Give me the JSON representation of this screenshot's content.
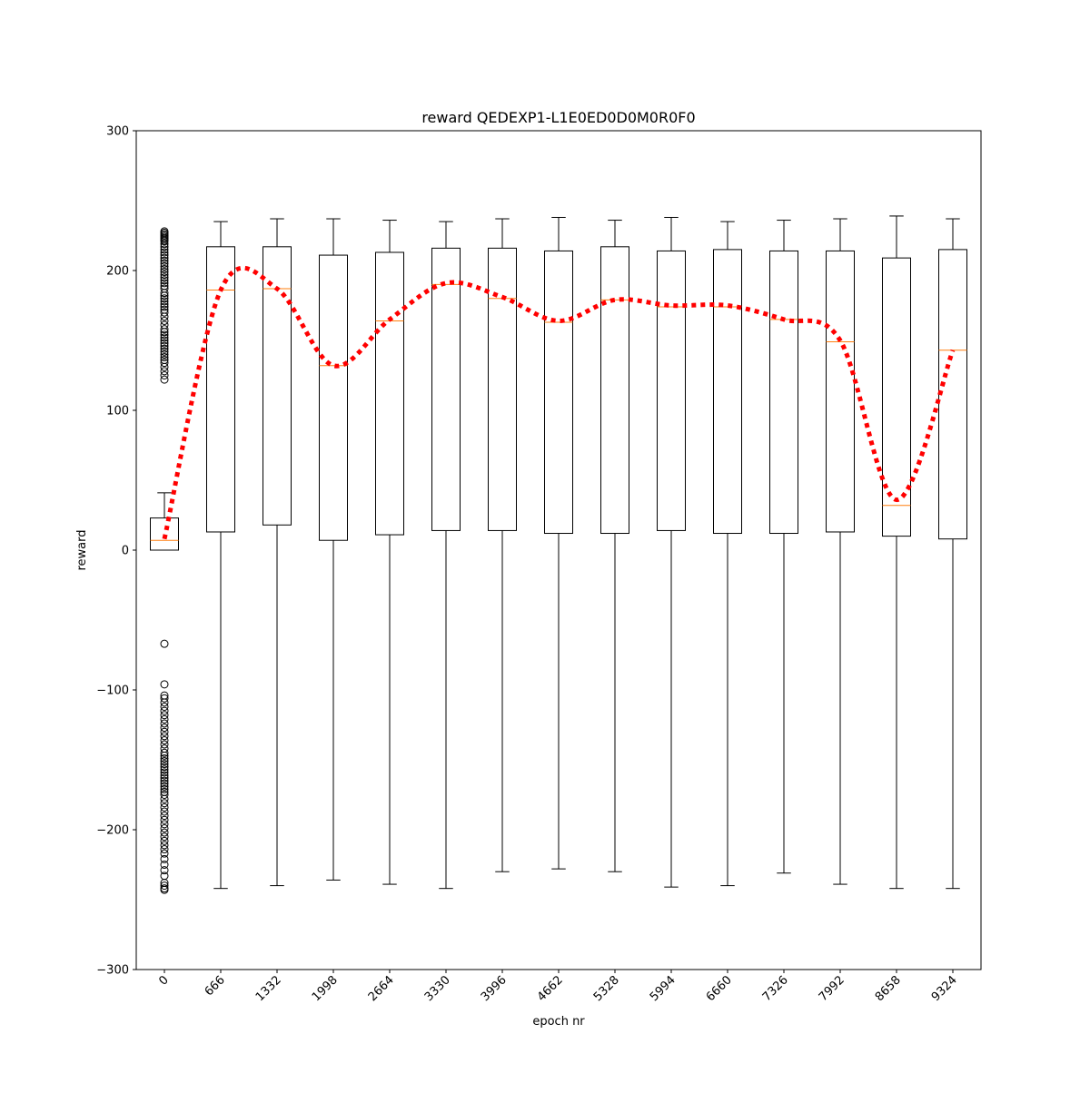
{
  "chart_data": {
    "type": "box",
    "title": "reward QEDEXP1-L1E0ED0D0M0R0F0",
    "xlabel": "epoch nr",
    "ylabel": "reward",
    "ylim": [
      -300,
      300
    ],
    "yticks": [
      -300,
      -200,
      -100,
      0,
      100,
      200,
      300
    ],
    "ytick_labels": [
      "−300",
      "−200",
      "−100",
      "0",
      "100",
      "200",
      "300"
    ],
    "categories": [
      "0",
      "666",
      "1332",
      "1998",
      "2664",
      "3330",
      "3996",
      "4662",
      "5328",
      "5994",
      "6660",
      "7326",
      "7992",
      "8658",
      "9324"
    ],
    "grid": false,
    "colors": {
      "box": "#000000",
      "median": "#ff7f0e",
      "trend": "#ff0000",
      "flier": "#000000"
    },
    "boxes": [
      {
        "category": "0",
        "whisker_low": 0,
        "q1": 0,
        "median": 7,
        "q3": 23,
        "whisker_high": 41,
        "fliers": [
          228,
          227,
          226,
          225,
          224,
          223,
          222,
          221,
          219,
          217,
          215,
          213,
          211,
          209,
          207,
          205,
          203,
          201,
          199,
          197,
          195,
          193,
          191,
          189,
          187,
          184,
          182,
          180,
          178,
          176,
          174,
          172,
          170,
          167,
          164,
          161,
          158,
          156,
          154,
          152,
          150,
          148,
          146,
          144,
          142,
          140,
          138,
          136,
          134,
          131,
          128,
          125,
          122,
          -67,
          -96,
          -104,
          -106,
          -109,
          -112,
          -115,
          -118,
          -121,
          -124,
          -127,
          -130,
          -133,
          -136,
          -139,
          -142,
          -145,
          -147,
          -149,
          -151,
          -153,
          -155,
          -157,
          -159,
          -161,
          -163,
          -165,
          -167,
          -169,
          -171,
          -173,
          -175,
          -178,
          -181,
          -184,
          -187,
          -190,
          -193,
          -196,
          -199,
          -202,
          -205,
          -208,
          -211,
          -214,
          -217,
          -221,
          -225,
          -229,
          -233,
          -238,
          -240,
          -242,
          -243
        ]
      },
      {
        "category": "666",
        "whisker_low": -242,
        "q1": 13,
        "median": 186,
        "q3": 217,
        "whisker_high": 235
      },
      {
        "category": "1332",
        "whisker_low": -240,
        "q1": 18,
        "median": 187,
        "q3": 217,
        "whisker_high": 237
      },
      {
        "category": "1998",
        "whisker_low": -236,
        "q1": 7,
        "median": 132,
        "q3": 211,
        "whisker_high": 237
      },
      {
        "category": "2664",
        "whisker_low": -239,
        "q1": 11,
        "median": 164,
        "q3": 213,
        "whisker_high": 236
      },
      {
        "category": "3330",
        "whisker_low": -242,
        "q1": 14,
        "median": 190,
        "q3": 216,
        "whisker_high": 235
      },
      {
        "category": "3996",
        "whisker_low": -230,
        "q1": 14,
        "median": 180,
        "q3": 216,
        "whisker_high": 237
      },
      {
        "category": "4662",
        "whisker_low": -228,
        "q1": 12,
        "median": 163,
        "q3": 214,
        "whisker_high": 238
      },
      {
        "category": "5328",
        "whisker_low": -230,
        "q1": 12,
        "median": 179,
        "q3": 217,
        "whisker_high": 236
      },
      {
        "category": "5994",
        "whisker_low": -241,
        "q1": 14,
        "median": 174,
        "q3": 214,
        "whisker_high": 238
      },
      {
        "category": "6660",
        "whisker_low": -240,
        "q1": 12,
        "median": 174,
        "q3": 215,
        "whisker_high": 235
      },
      {
        "category": "7326",
        "whisker_low": -231,
        "q1": 12,
        "median": 165,
        "q3": 214,
        "whisker_high": 236
      },
      {
        "category": "7992",
        "whisker_low": -239,
        "q1": 13,
        "median": 149,
        "q3": 214,
        "whisker_high": 237
      },
      {
        "category": "8658",
        "whisker_low": -242,
        "q1": 10,
        "median": 32,
        "q3": 209,
        "whisker_high": 239
      },
      {
        "category": "9324",
        "whisker_low": -242,
        "q1": 8,
        "median": 143,
        "q3": 215,
        "whisker_high": 237
      }
    ],
    "trend_line": {
      "style": "dotted",
      "values": [
        8,
        186,
        187,
        132,
        165,
        191,
        181,
        164,
        179,
        175,
        175,
        165,
        150,
        36,
        143
      ]
    }
  }
}
